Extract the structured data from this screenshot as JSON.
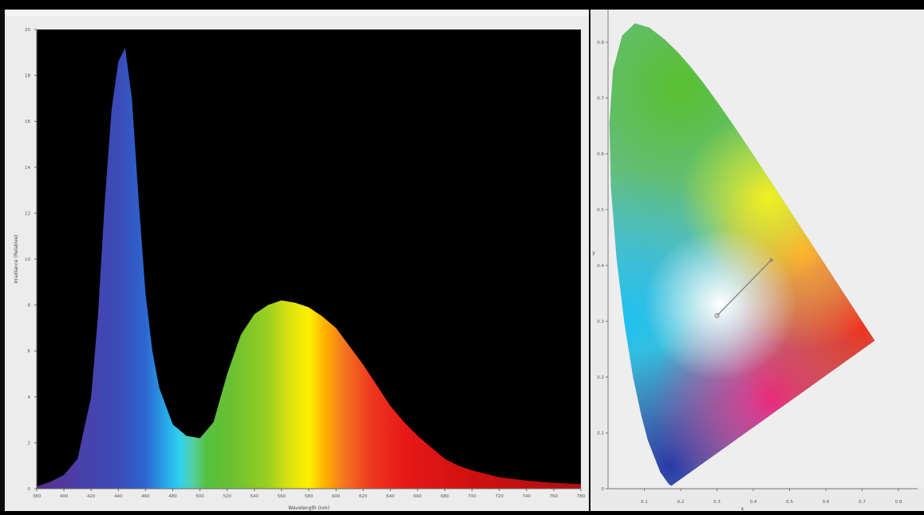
{
  "chart_data": [
    {
      "type": "area",
      "title": "",
      "xlabel": "Wavelength (nm)",
      "ylabel": "Irradiance (Relative)",
      "xlim": [
        380,
        780
      ],
      "ylim": [
        0,
        20
      ],
      "x_ticks": [
        "380",
        "400",
        "420",
        "440",
        "460",
        "480",
        "500",
        "520",
        "540",
        "560",
        "580",
        "600",
        "620",
        "640",
        "660",
        "680",
        "700",
        "720",
        "740",
        "760",
        "780"
      ],
      "y_ticks": [
        "0",
        "2",
        "4",
        "6",
        "8",
        "10",
        "12",
        "14",
        "16",
        "18",
        "20"
      ],
      "grid": false,
      "series": [
        {
          "x": [
            380,
            390,
            400,
            410,
            420,
            425,
            430,
            435,
            440,
            445,
            450,
            455,
            460,
            465,
            470,
            480,
            490,
            500,
            510,
            520,
            530,
            540,
            550,
            560,
            570,
            580,
            590,
            600,
            610,
            620,
            630,
            640,
            650,
            660,
            670,
            680,
            690,
            700,
            720,
            740,
            760,
            780
          ],
          "values": [
            0.1,
            0.3,
            0.6,
            1.3,
            4.0,
            7.5,
            12.5,
            16.5,
            18.6,
            19.2,
            17.0,
            12.5,
            8.5,
            6.0,
            4.4,
            2.8,
            2.3,
            2.2,
            2.9,
            5.0,
            6.7,
            7.6,
            8.0,
            8.2,
            8.1,
            7.9,
            7.5,
            7.0,
            6.2,
            5.4,
            4.5,
            3.6,
            2.9,
            2.3,
            1.8,
            1.3,
            1.0,
            0.8,
            0.5,
            0.35,
            0.25,
            0.2
          ]
        }
      ]
    },
    {
      "type": "scatter",
      "title": "",
      "xlabel": "x",
      "ylabel": "y",
      "xlim": [
        0,
        0.8
      ],
      "ylim": [
        0,
        0.9
      ],
      "x_ticks": [
        "0.1",
        "0.2",
        "0.3",
        "0.4",
        "0.5",
        "0.6",
        "0.7",
        "0.8"
      ],
      "y_ticks": [
        "0",
        "0.1",
        "0.2",
        "0.3",
        "0.4",
        "0.5",
        "0.6",
        "0.7",
        "0.8"
      ],
      "grid": false,
      "locus": {
        "x": [
          0.1741,
          0.1666,
          0.144,
          0.1096,
          0.0913,
          0.0687,
          0.0454,
          0.0235,
          0.0082,
          0.0039,
          0.0139,
          0.0389,
          0.0743,
          0.1142,
          0.1547,
          0.1929,
          0.2296,
          0.2658,
          0.3016,
          0.3373,
          0.3731,
          0.4087,
          0.4441,
          0.4788,
          0.5125,
          0.5448,
          0.5752,
          0.6029,
          0.627,
          0.6482,
          0.6658,
          0.6915,
          0.7347
        ],
        "y": [
          0.005,
          0.0089,
          0.0297,
          0.0868,
          0.1327,
          0.2007,
          0.295,
          0.4127,
          0.5384,
          0.6548,
          0.7502,
          0.812,
          0.8338,
          0.8262,
          0.8059,
          0.7816,
          0.7543,
          0.7243,
          0.6923,
          0.6589,
          0.6245,
          0.5896,
          0.5547,
          0.5202,
          0.4866,
          0.4544,
          0.4242,
          0.3965,
          0.3725,
          0.3514,
          0.334,
          0.3083,
          0.2653
        ]
      },
      "points": [
        {
          "x": 0.3,
          "y": 0.31
        },
        {
          "x": 0.45,
          "y": 0.41
        }
      ]
    }
  ]
}
